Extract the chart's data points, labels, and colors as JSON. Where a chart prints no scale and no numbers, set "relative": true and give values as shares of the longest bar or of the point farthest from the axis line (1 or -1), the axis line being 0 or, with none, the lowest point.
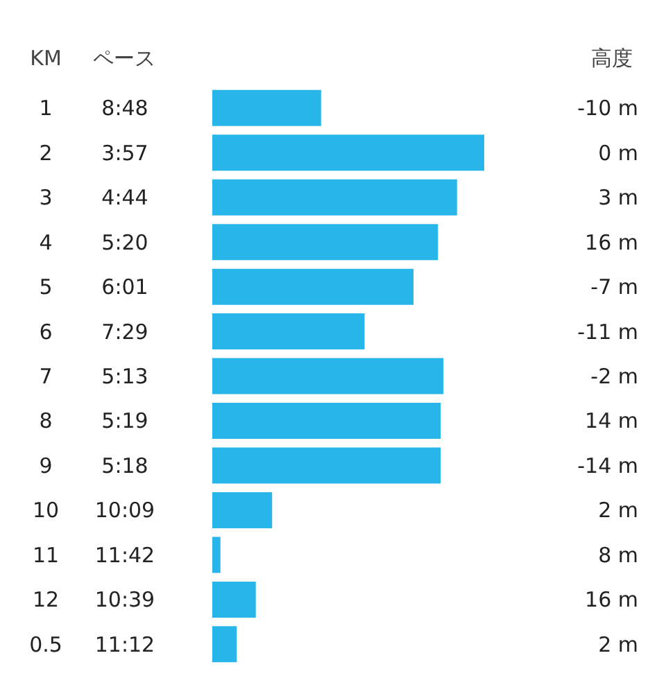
{
  "chart_data": {
    "type": "bar",
    "orientation": "horizontal",
    "relative": true,
    "ylabel": "KM",
    "xlabel": "ペース",
    "annotations": [
      "高度",
      "8:48",
      "3:57",
      "4:44",
      "5:20",
      "6:01",
      "7:29",
      "5:13",
      "5:19",
      "5:18",
      "10:09",
      "11:42",
      "10:39",
      "11:12"
    ],
    "categories": [
      "1",
      "2",
      "3",
      "4",
      "5",
      "6",
      "7",
      "8",
      "9",
      "10",
      "11",
      "12",
      "0.5"
    ],
    "values": [
      0.4,
      1,
      0.9,
      0.83,
      0.74,
      0.56,
      0.85,
      0.84,
      0.84,
      0.22,
      0.03,
      0.16,
      0.09
    ],
    "y2_categories": [
      "-10 m",
      "0 m",
      "3 m",
      "16 m",
      "-7 m",
      "-11 m",
      "-2 m",
      "14 m",
      "-14 m",
      "2 m",
      "8 m",
      "16 m",
      "2 m"
    ],
    "color": "#27b5ea",
    "grid": false,
    "legend": false
  }
}
